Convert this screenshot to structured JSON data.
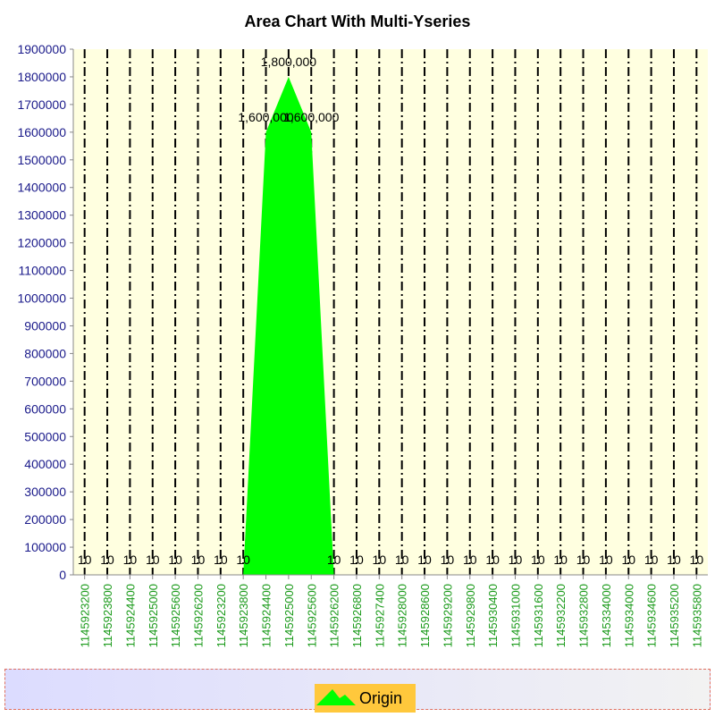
{
  "chart_data": {
    "type": "area",
    "title": "Area Chart With Multi-Yseries",
    "xlabel": "",
    "ylabel": "",
    "ylim": [
      0,
      1900000
    ],
    "y_ticks": [
      "0",
      "100000",
      "200000",
      "300000",
      "400000",
      "500000",
      "600000",
      "700000",
      "800000",
      "900000",
      "1000000",
      "1100000",
      "1200000",
      "1300000",
      "1400000",
      "1500000",
      "1600000",
      "1700000",
      "1800000",
      "1900000"
    ],
    "categories": [
      "1145923200",
      "1145923800",
      "1145924400",
      "1145925000",
      "1145925600",
      "1145926200",
      "1145923200",
      "1145923800",
      "1145924400",
      "1145925000",
      "1145925600",
      "1145926200",
      "1145926800",
      "1145927400",
      "1145928000",
      "1145928600",
      "1145929200",
      "1145929800",
      "1145930400",
      "1145931000",
      "1145931600",
      "1145932200",
      "1145932800",
      "1145334000",
      "1145934000",
      "1145934600",
      "1145935200",
      "1145935800"
    ],
    "series": [
      {
        "name": "Origin",
        "values": [
          10,
          10,
          10,
          10,
          10,
          10,
          10,
          10,
          1600000,
          1800000,
          1600000,
          10,
          10,
          10,
          10,
          10,
          10,
          10,
          10,
          10,
          10,
          10,
          10,
          10,
          10,
          10,
          10,
          10
        ],
        "data_labels": [
          "10",
          "10",
          "10",
          "10",
          "10",
          "10",
          "10",
          "10",
          "1,600,000",
          "1,800,000",
          "1,600,000",
          "10",
          "10",
          "10",
          "10",
          "10",
          "10",
          "10",
          "10",
          "10",
          "10",
          "10",
          "10",
          "10",
          "10",
          "10",
          "10",
          "10"
        ]
      }
    ],
    "grid": true,
    "legend_position": "bottom",
    "colors": {
      "area": "#00ff00",
      "plot_bg": "#ffffe0",
      "y_tick_text": "#1a1a8a",
      "x_tick_text": "#1a9a1a",
      "legend_bg": "#ffc83c"
    }
  },
  "legend": {
    "label": "Origin"
  }
}
